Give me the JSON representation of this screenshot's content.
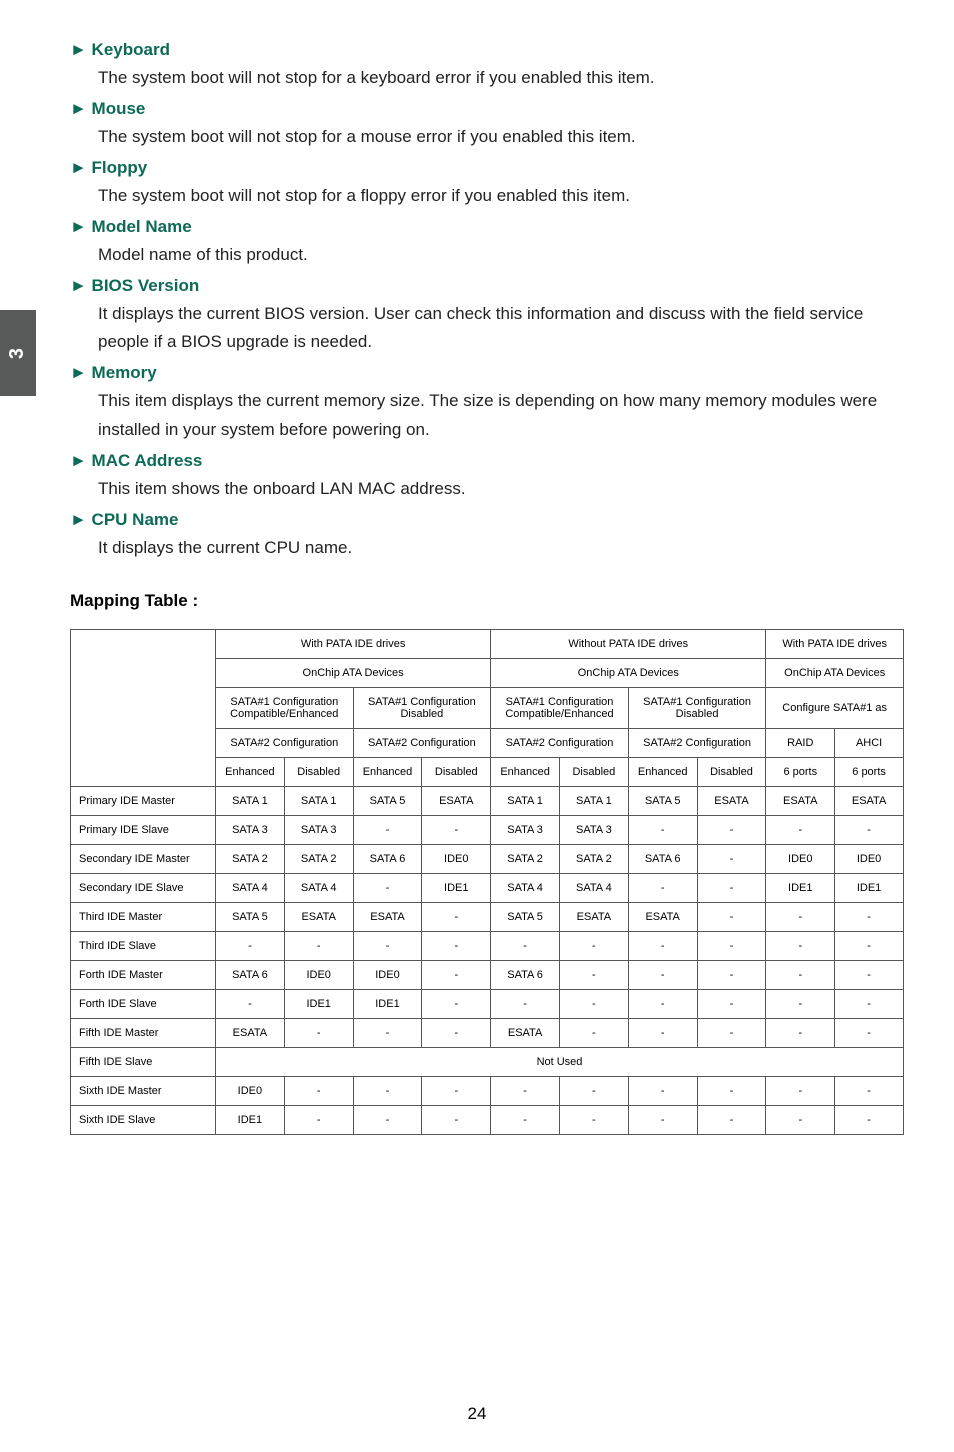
{
  "side_tab": "3",
  "sections": {
    "keyboard": {
      "title": "► Keyboard",
      "body": "The system boot will not stop for a keyboard error if you enabled this item."
    },
    "mouse": {
      "title": "► Mouse",
      "body": "The system boot will not stop for a mouse error if you enabled this item."
    },
    "floppy": {
      "title": "► Floppy",
      "body": "The system boot will not stop for a floppy error if you enabled this item."
    },
    "model_name": {
      "title": "► Model Name",
      "body": "Model name of this product."
    },
    "bios_version": {
      "title": "► BIOS Version",
      "body": "It displays the current BIOS version. User can check this information and discuss with the field service people if a BIOS upgrade is needed."
    },
    "memory": {
      "title": "► Memory",
      "body": "This item displays the current memory size. The size is depending on how many memory modules were installed in your system before powering on."
    },
    "mac_address": {
      "title": "► MAC Address",
      "body": "This item shows the onboard LAN MAC address."
    },
    "cpu_name": {
      "title": "► CPU Name",
      "body": "It displays the current CPU name."
    }
  },
  "mapping_title": "Mapping Table :",
  "table": {
    "h1_with": "With PATA IDE drives",
    "h1_without": "Without PATA IDE drives",
    "h1_withpata": "With PATA IDE drives",
    "h2_onchip1": "OnChip ATA Devices",
    "h2_onchip2": "OnChip ATA Devices",
    "h2_onchip3": "OnChip ATA Devices",
    "h3_s1ce": "SATA#1 Configuration Compatible/Enhanced",
    "h3_s1cd": "SATA#1 Configuration Disabled",
    "h3_s1ce2": "SATA#1 Configuration Compatible/Enhanced",
    "h3_s1cd2": "SATA#1 Configuration Disabled",
    "h3_conf": "Configure SATA#1 as",
    "h4_s2c1": "SATA#2 Configuration",
    "h4_s2c2": "SATA#2 Configuration",
    "h4_s2c3": "SATA#2 Configuration",
    "h4_s2c4": "SATA#2 Configuration",
    "h4_raid": "RAID",
    "h4_ahci": "AHCI",
    "h5_enh": "Enhanced",
    "h5_dis": "Disabled",
    "h5_6p": "6 ports",
    "rows": [
      {
        "label": "Primary IDE Master",
        "c": [
          "SATA 1",
          "SATA 1",
          "SATA 5",
          "ESATA",
          "SATA 1",
          "SATA 1",
          "SATA 5",
          "ESATA",
          "ESATA",
          "ESATA"
        ]
      },
      {
        "label": "Primary IDE Slave",
        "c": [
          "SATA 3",
          "SATA 3",
          "-",
          "-",
          "SATA 3",
          "SATA 3",
          "-",
          "-",
          "-",
          "-"
        ]
      },
      {
        "label": "Secondary IDE Master",
        "c": [
          "SATA 2",
          "SATA 2",
          "SATA 6",
          "IDE0",
          "SATA 2",
          "SATA 2",
          "SATA 6",
          "-",
          "IDE0",
          "IDE0"
        ]
      },
      {
        "label": "Secondary IDE Slave",
        "c": [
          "SATA 4",
          "SATA 4",
          "-",
          "IDE1",
          "SATA 4",
          "SATA 4",
          "-",
          "-",
          "IDE1",
          "IDE1"
        ]
      },
      {
        "label": "Third IDE Master",
        "c": [
          "SATA 5",
          "ESATA",
          "ESATA",
          "-",
          "SATA 5",
          "ESATA",
          "ESATA",
          "-",
          "-",
          "-"
        ]
      },
      {
        "label": "Third IDE Slave",
        "c": [
          "-",
          "-",
          "-",
          "-",
          "-",
          "-",
          "-",
          "-",
          "-",
          "-"
        ]
      },
      {
        "label": "Forth IDE Master",
        "c": [
          "SATA 6",
          "IDE0",
          "IDE0",
          "-",
          "SATA 6",
          "-",
          "-",
          "-",
          "-",
          "-"
        ]
      },
      {
        "label": "Forth IDE Slave",
        "c": [
          "-",
          "IDE1",
          "IDE1",
          "-",
          "-",
          "-",
          "-",
          "-",
          "-",
          "-"
        ]
      },
      {
        "label": "Fifth IDE Master",
        "c": [
          "ESATA",
          "-",
          "-",
          "-",
          "ESATA",
          "-",
          "-",
          "-",
          "-",
          "-"
        ]
      }
    ],
    "fifth_slave_label": "Fifth IDE Slave",
    "fifth_slave_val": "Not  Used",
    "last_rows": [
      {
        "label": "Sixth IDE Master",
        "c": [
          "IDE0",
          "-",
          "-",
          "-",
          "-",
          "-",
          "-",
          "-",
          "-",
          "-"
        ]
      },
      {
        "label": "Sixth IDE Slave",
        "c": [
          "IDE1",
          "-",
          "-",
          "-",
          "-",
          "-",
          "-",
          "-",
          "-",
          "-"
        ]
      }
    ]
  },
  "page_num": "24"
}
